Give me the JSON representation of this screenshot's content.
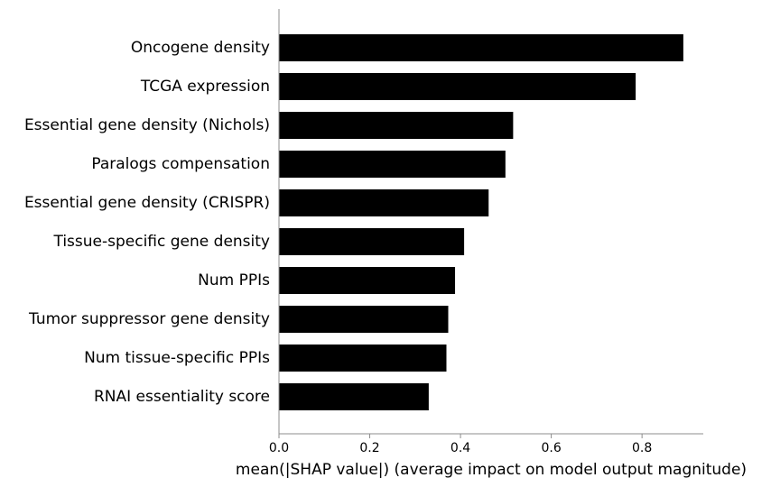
{
  "chart_data": {
    "type": "bar",
    "orientation": "horizontal",
    "categories": [
      "Oncogene density",
      "TCGA expression",
      "Essential gene density (Nichols)",
      "Paralogs compensation",
      "Essential gene density (CRISPR)",
      "Tissue-specific gene density",
      "Num PPIs",
      "Tumor suppressor gene density",
      "Num tissue-specific PPIs",
      "RNAI essentiality score"
    ],
    "values": [
      0.891,
      0.786,
      0.516,
      0.499,
      0.462,
      0.408,
      0.388,
      0.373,
      0.369,
      0.33
    ],
    "title": "",
    "xlabel": "mean(|SHAP value|) (average impact on model output magnitude)",
    "ylabel": "",
    "xlim": [
      0,
      0.935
    ],
    "xticks": [
      0,
      0.2,
      0.4,
      0.6,
      0.8
    ],
    "xtick_labels": [
      "0.0",
      "0.2",
      "0.4",
      "0.6",
      "0.8"
    ],
    "grid": false,
    "bar_color": "#000000",
    "axis_color": "#8c8c8c"
  }
}
